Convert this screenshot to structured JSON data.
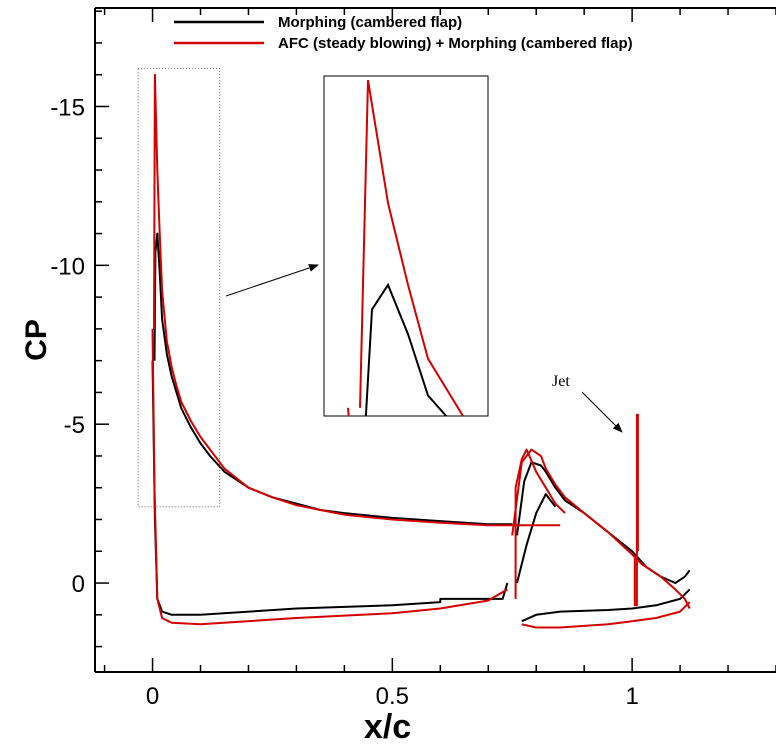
{
  "chart_data": {
    "type": "line",
    "title": "",
    "xlabel": "x/c",
    "ylabel": "CP",
    "xlim": [
      -0.12,
      1.3
    ],
    "ylim": [
      2.8,
      -18.1
    ],
    "y_inverted": true,
    "xticks": [
      {
        "value": 0,
        "label": "0"
      },
      {
        "value": 0.5,
        "label": "0.5"
      },
      {
        "value": 1,
        "label": "1"
      }
    ],
    "yticks": [
      {
        "value": 0,
        "label": "0"
      },
      {
        "value": -5,
        "label": "-5"
      },
      {
        "value": -10,
        "label": "-10"
      },
      {
        "value": -15,
        "label": "-15"
      }
    ],
    "grid": false,
    "legend_position": "top",
    "colors": {
      "morphing": "#000000",
      "afc": "#d40000"
    },
    "annotations": [
      {
        "text": "Jet",
        "x": 1.01,
        "y": -5.3
      }
    ],
    "series": [
      {
        "name": "Morphing (cambered flap)",
        "segments": [
          [
            [
              0.004,
              -7.0
            ],
            [
              0.006,
              -10.4
            ],
            [
              0.01,
              -11.0
            ],
            [
              0.015,
              -9.8
            ],
            [
              0.02,
              -8.3
            ],
            [
              0.03,
              -7.2
            ],
            [
              0.04,
              -6.5
            ],
            [
              0.05,
              -6.0
            ],
            [
              0.06,
              -5.5
            ],
            [
              0.08,
              -4.9
            ],
            [
              0.1,
              -4.4
            ],
            [
              0.12,
              -4.0
            ],
            [
              0.15,
              -3.5
            ],
            [
              0.2,
              -3.0
            ],
            [
              0.25,
              -2.7
            ],
            [
              0.3,
              -2.5
            ],
            [
              0.35,
              -2.3
            ],
            [
              0.4,
              -2.2
            ],
            [
              0.5,
              -2.05
            ],
            [
              0.6,
              -1.95
            ],
            [
              0.7,
              -1.85
            ],
            [
              0.75,
              -1.85
            ]
          ],
          [
            [
              0.0,
              -7.0
            ],
            [
              0.005,
              -2.0
            ],
            [
              0.01,
              0.5
            ],
            [
              0.02,
              0.9
            ],
            [
              0.04,
              1.0
            ],
            [
              0.1,
              1.0
            ],
            [
              0.3,
              0.8
            ],
            [
              0.5,
              0.7
            ],
            [
              0.6,
              0.6
            ],
            [
              0.6,
              0.5
            ],
            [
              0.73,
              0.5
            ],
            [
              0.74,
              0.0
            ]
          ],
          [
            [
              0.76,
              -1.5
            ],
            [
              0.775,
              -3.2
            ],
            [
              0.79,
              -3.8
            ],
            [
              0.81,
              -3.7
            ],
            [
              0.82,
              -3.5
            ],
            [
              0.84,
              -3.0
            ],
            [
              0.86,
              -2.6
            ],
            [
              0.9,
              -2.2
            ],
            [
              0.95,
              -1.6
            ],
            [
              1.0,
              -1.0
            ],
            [
              1.03,
              -0.5
            ],
            [
              1.06,
              -0.2
            ],
            [
              1.09,
              0.0
            ],
            [
              1.11,
              -0.2
            ],
            [
              1.12,
              -0.4
            ]
          ],
          [
            [
              0.77,
              1.2
            ],
            [
              0.8,
              1.0
            ],
            [
              0.85,
              0.9
            ],
            [
              0.95,
              0.85
            ],
            [
              1.0,
              0.8
            ],
            [
              1.05,
              0.7
            ],
            [
              1.1,
              0.5
            ],
            [
              1.12,
              0.2
            ]
          ],
          [
            [
              0.76,
              0.0
            ],
            [
              0.78,
              -1.2
            ],
            [
              0.8,
              -2.2
            ],
            [
              0.82,
              -2.8
            ],
            [
              0.84,
              -2.4
            ]
          ]
        ]
      },
      {
        "name": "AFC (steady blowing) + Morphing (cambered flap)",
        "segments": [
          [
            [
              0.003,
              -8.0
            ],
            [
              0.005,
              -16.0
            ],
            [
              0.01,
              -13.0
            ],
            [
              0.015,
              -11.0
            ],
            [
              0.02,
              -9.2
            ],
            [
              0.03,
              -7.6
            ],
            [
              0.04,
              -6.8
            ],
            [
              0.05,
              -6.2
            ],
            [
              0.06,
              -5.7
            ],
            [
              0.08,
              -5.1
            ],
            [
              0.1,
              -4.6
            ],
            [
              0.12,
              -4.2
            ],
            [
              0.15,
              -3.6
            ],
            [
              0.2,
              -3.0
            ],
            [
              0.25,
              -2.7
            ],
            [
              0.3,
              -2.45
            ],
            [
              0.35,
              -2.3
            ],
            [
              0.4,
              -2.15
            ],
            [
              0.5,
              -2.0
            ],
            [
              0.6,
              -1.9
            ],
            [
              0.7,
              -1.82
            ],
            [
              0.8,
              -1.82
            ],
            [
              0.85,
              -1.82
            ]
          ],
          [
            [
              0.0,
              -8.0
            ],
            [
              0.004,
              -3.0
            ],
            [
              0.01,
              0.5
            ],
            [
              0.02,
              1.1
            ],
            [
              0.04,
              1.25
            ],
            [
              0.1,
              1.3
            ],
            [
              0.3,
              1.1
            ],
            [
              0.5,
              0.95
            ],
            [
              0.6,
              0.8
            ],
            [
              0.7,
              0.55
            ],
            [
              0.74,
              0.2
            ]
          ],
          [
            [
              0.75,
              -1.5
            ],
            [
              0.77,
              -3.8
            ],
            [
              0.79,
              -4.2
            ],
            [
              0.81,
              -4.0
            ],
            [
              0.82,
              -3.6
            ],
            [
              0.84,
              -3.1
            ],
            [
              0.86,
              -2.7
            ],
            [
              0.9,
              -2.2
            ],
            [
              0.95,
              -1.6
            ],
            [
              1.0,
              -0.9
            ],
            [
              1.02,
              -0.6
            ],
            [
              1.06,
              -0.2
            ],
            [
              1.09,
              0.2
            ],
            [
              1.11,
              0.5
            ],
            [
              1.12,
              0.8
            ]
          ],
          [
            [
              0.77,
              1.3
            ],
            [
              0.8,
              1.4
            ],
            [
              0.85,
              1.4
            ],
            [
              0.95,
              1.3
            ],
            [
              1.0,
              1.2
            ],
            [
              1.05,
              1.1
            ],
            [
              1.1,
              0.9
            ],
            [
              1.12,
              0.6
            ]
          ],
          [
            [
              0.757,
              0.5
            ],
            [
              0.757,
              -3.0
            ],
            [
              0.77,
              -3.9
            ],
            [
              0.78,
              -4.2
            ],
            [
              0.8,
              -3.5
            ],
            [
              0.82,
              -3.0
            ],
            [
              0.84,
              -2.5
            ],
            [
              0.86,
              -2.2
            ]
          ],
          [
            [
              1.0055,
              -0.8
            ],
            [
              1.0055,
              0.7
            ],
            [
              1.01,
              0.7
            ],
            [
              1.01,
              -5.3
            ],
            [
              1.012,
              -5.3
            ],
            [
              1.012,
              -1.0
            ]
          ]
        ]
      }
    ]
  }
}
